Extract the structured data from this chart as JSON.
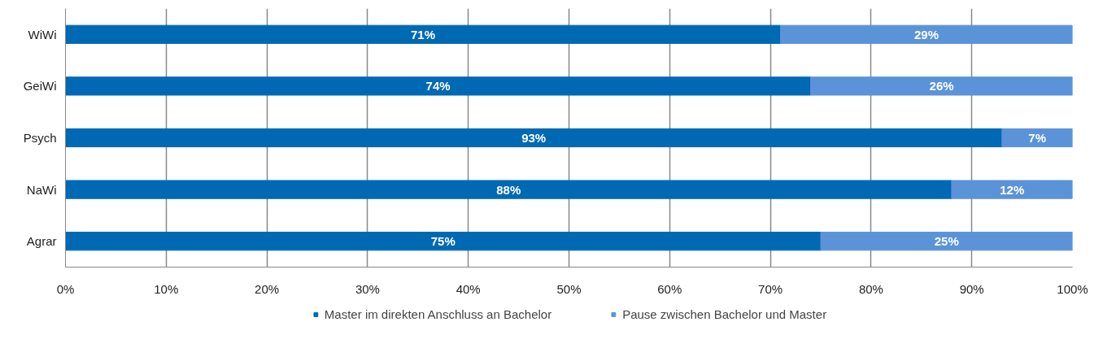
{
  "chart_data": {
    "type": "bar",
    "orientation": "horizontal",
    "stacked": true,
    "categories": [
      "WiWi",
      "GeiWi",
      "Psych",
      "NaWi",
      "Agrar"
    ],
    "series": [
      {
        "name": "Master im direkten Anschluss an Bachelor",
        "color": "#0069b4",
        "values": [
          71,
          74,
          93,
          88,
          75
        ],
        "value_labels": [
          "71%",
          "74%",
          "93%",
          "88%",
          "75%"
        ]
      },
      {
        "name": "Pause zwischen Bachelor und Master",
        "color": "#5b93d9",
        "values": [
          29,
          26,
          7,
          12,
          25
        ],
        "value_labels": [
          "29%",
          "26%",
          "7%",
          "12%",
          "25%"
        ]
      }
    ],
    "xlim": [
      0,
      100
    ],
    "xticks": [
      {
        "value": 0,
        "label": "0%"
      },
      {
        "value": 10,
        "label": "10%"
      },
      {
        "value": 20,
        "label": "20%"
      },
      {
        "value": 30,
        "label": "30%"
      },
      {
        "value": 40,
        "label": "40%"
      },
      {
        "value": 50,
        "label": "50%"
      },
      {
        "value": 60,
        "label": "60%"
      },
      {
        "value": 70,
        "label": "70%"
      },
      {
        "value": 80,
        "label": "80%"
      },
      {
        "value": 90,
        "label": "90%"
      },
      {
        "value": 100,
        "label": "100%"
      }
    ],
    "grid": "x",
    "legend": "bottom"
  }
}
